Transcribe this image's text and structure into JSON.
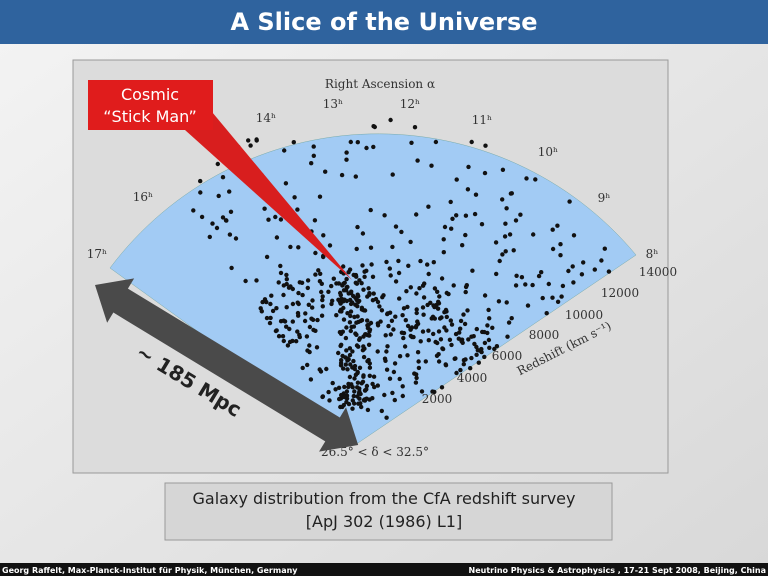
{
  "header": {
    "title": "A Slice of the Universe"
  },
  "figure": {
    "axis_title": "Right Ascension α",
    "hour_labels": [
      "13ʰ",
      "12ʰ",
      "14ʰ",
      "11ʰ",
      "10ʰ",
      "16ʰ",
      "9ʰ",
      "17ʰ",
      "8ʰ"
    ],
    "redshift_labels": [
      "14000",
      "12000",
      "10000",
      "8000",
      "6000",
      "4000",
      "2000"
    ],
    "redshift_title": "Redshift (km s⁻¹)",
    "declination": "26.5° < δ < 32.5°",
    "callout": [
      "Cosmic",
      "“Stick Man”"
    ],
    "scale_label": "~ 185 Mpc"
  },
  "caption": [
    "Galaxy distribution from the CfA redshift survey",
    "[ApJ 302 (1986) L1]"
  ],
  "footer": {
    "left": "Georg Raffelt, Max-Planck-Institut für Physik, München, Germany",
    "right": "Neutrino Physics & Astrophysics , 17-21 Sept 2008, Beijing, China"
  }
}
